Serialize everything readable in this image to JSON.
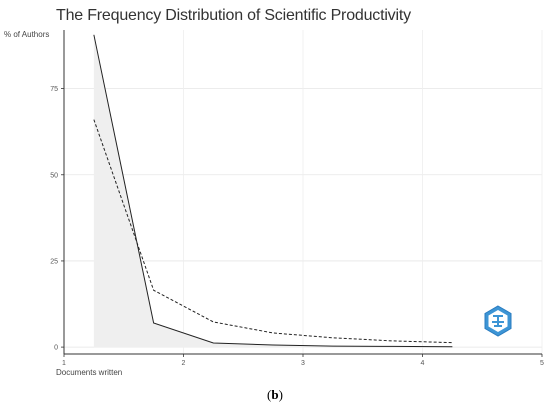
{
  "chart_data": {
    "type": "line",
    "title": "The Frequency Distribution of Scientific Productivity",
    "xlabel": "Documents written",
    "ylabel": "% of Authors",
    "x": [
      1,
      2,
      3,
      4,
      5,
      6,
      7
    ],
    "xlim": [
      0.5,
      8.5
    ],
    "ylim": [
      -2,
      92
    ],
    "x_ticks": [
      {
        "value": 0.5,
        "label": "1"
      },
      {
        "value": 2.5,
        "label": "2"
      },
      {
        "value": 4.5,
        "label": "3"
      },
      {
        "value": 6.5,
        "label": "4"
      },
      {
        "value": 8.5,
        "label": "5"
      }
    ],
    "y_ticks": [
      {
        "value": 0,
        "label": "0"
      },
      {
        "value": 25,
        "label": "25"
      },
      {
        "value": 50,
        "label": "50"
      },
      {
        "value": 75,
        "label": "75"
      }
    ],
    "series": [
      {
        "values": [
          90.6,
          7.0,
          1.2,
          0.6,
          0.3,
          0.2,
          0.1
        ],
        "style": "solid",
        "color": "#222222"
      },
      {
        "values": [
          66.0,
          16.5,
          7.3,
          4.1,
          2.7,
          1.8,
          1.3
        ],
        "style": "dashed",
        "color": "#222222"
      }
    ],
    "area_fill": "#efefef",
    "grid": true,
    "legend": "none"
  },
  "caption": {
    "open": "(",
    "letter": "b",
    "close": ")"
  }
}
